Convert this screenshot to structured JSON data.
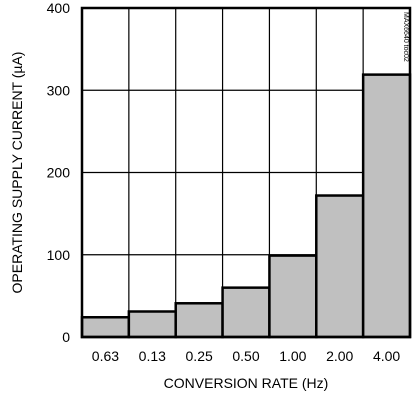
{
  "chart_data": {
    "type": "bar",
    "categories": [
      "0.63",
      "0.13",
      "0.25",
      "0.50",
      "1.00",
      "2.00",
      "4.00"
    ],
    "values": [
      24,
      31,
      41,
      60,
      99,
      172,
      319
    ],
    "xlabel": "CONVERSION RATE (Hz)",
    "ylabel": "OPERATING SUPPLY CURRENT (µA)",
    "ylim": [
      0,
      400
    ],
    "yticks": [
      0,
      100,
      200,
      300,
      400
    ],
    "grid": true,
    "bar_color": "#c0c0c0",
    "bar_edge_color": "#000000",
    "watermark": "MAX6640 toc02"
  }
}
